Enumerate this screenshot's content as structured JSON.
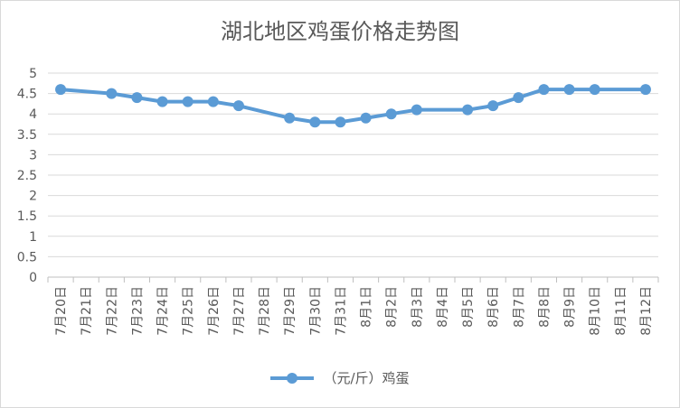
{
  "chart_data": {
    "type": "line",
    "title": "湖北地区鸡蛋价格走势图",
    "categories": [
      "7月20日",
      "7月21日",
      "7月22日",
      "7月23日",
      "7月24日",
      "7月25日",
      "7月26日",
      "7月27日",
      "7月28日",
      "7月29日",
      "7月30日",
      "7月31日",
      "8月1日",
      "8月2日",
      "8月3日",
      "8月4日",
      "8月5日",
      "8月6日",
      "8月7日",
      "8月8日",
      "8月9日",
      "8月10日",
      "8月11日",
      "8月12日"
    ],
    "series": [
      {
        "name": "（元/斤）鸡蛋",
        "values": [
          4.6,
          null,
          4.5,
          4.4,
          4.3,
          4.3,
          4.3,
          4.2,
          null,
          3.9,
          3.8,
          3.8,
          3.9,
          4.0,
          4.1,
          null,
          4.1,
          4.2,
          4.4,
          4.6,
          4.6,
          4.6,
          null,
          4.6
        ],
        "color": "#5b9bd5"
      }
    ],
    "yticks": [
      "0",
      "0.5",
      "1",
      "1.5",
      "2",
      "2.5",
      "3",
      "3.5",
      "4",
      "4.5",
      "5"
    ],
    "ylim": [
      0,
      5
    ],
    "grid": true,
    "legend": "bottom"
  }
}
